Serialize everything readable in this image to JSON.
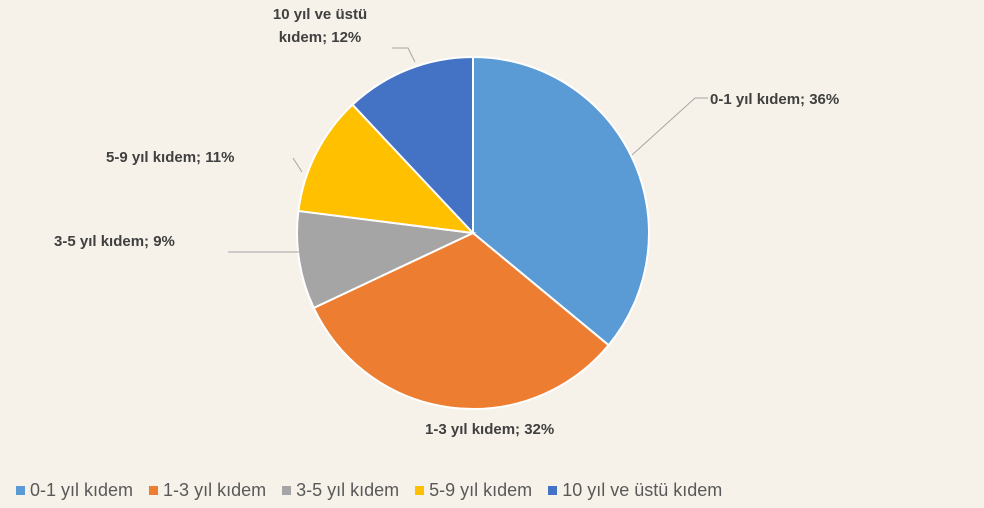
{
  "chart_data": {
    "type": "pie",
    "categories": [
      "0-1 yıl kıdem",
      "1-3 yıl kıdem",
      "3-5 yıl kıdem",
      "5-9 yıl kıdem",
      "10 yıl ve üstü kıdem"
    ],
    "values": [
      36,
      32,
      9,
      11,
      12
    ],
    "value_labels": [
      "0-1 yıl kıdem; 36%",
      "1-3 yıl kıdem; 32%",
      "3-5 yıl kıdem; 9%",
      "5-9 yıl kıdem; 11%",
      "10 yıl ve üstü kıdem; 12%"
    ],
    "colors": [
      "#5b9bd5",
      "#ed7d31",
      "#a5a5a5",
      "#ffc000",
      "#4472c4"
    ],
    "legend": "bottom"
  }
}
